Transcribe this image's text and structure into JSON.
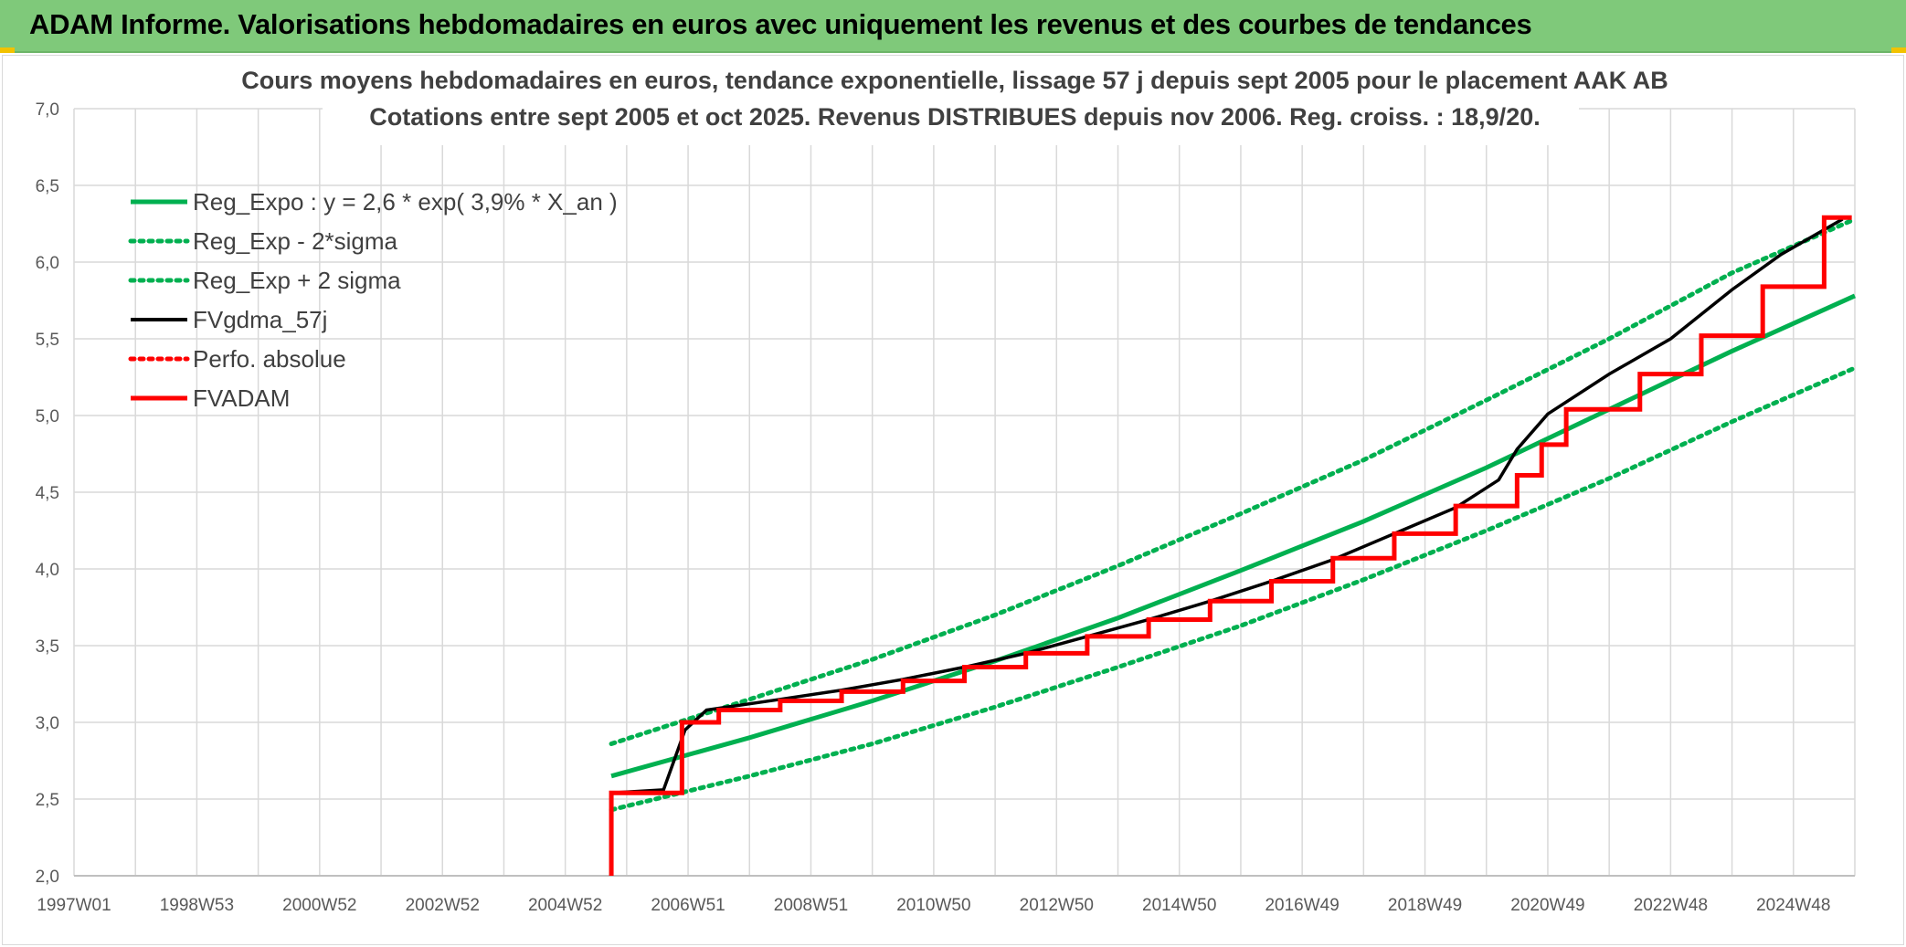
{
  "header": {
    "title": "ADAM Informe. Valorisations hebdomadaires en euros avec uniquement les revenus et des courbes de tendances"
  },
  "colors": {
    "header_bg": "#7fc97a",
    "green": "#00b050",
    "black": "#000000",
    "red": "#ff0000"
  },
  "chart_data": {
    "type": "line",
    "title_lines": [
      "Cours moyens hebdomadaires en euros, tendance exponentielle, lissage 57 j depuis sept 2005 pour le placement AAK AB",
      "Cotations entre sept 2005 et oct 2025. Revenus DISTRIBUES depuis nov 2006. Reg. croiss. : 18,9/20."
    ],
    "x_tick_labels": [
      "1997W01",
      "1998W53",
      "2000W52",
      "2002W52",
      "2004W52",
      "2006W51",
      "2008W51",
      "2010W50",
      "2012W50",
      "2014W50",
      "2016W49",
      "2018W49",
      "2020W49",
      "2022W48",
      "2024W48"
    ],
    "xlim": [
      1997.0,
      2026.0
    ],
    "ylim": [
      2.0,
      7.0
    ],
    "y_tick_labels": [
      "2,0",
      "2,5",
      "3,0",
      "3,5",
      "4,0",
      "4,5",
      "5,0",
      "5,5",
      "6,0",
      "6,5",
      "7,0"
    ],
    "grid": true,
    "legend_position": "top-left",
    "series": [
      {
        "name": "Reg_Expo : y = 2,6 * exp( 3,9% *  X_an )",
        "color": "#00b050",
        "style": "solid",
        "x": [
          2005.75,
          2008,
          2010,
          2012,
          2014,
          2016,
          2018,
          2020,
          2022,
          2024,
          2026
        ],
        "y": [
          2.65,
          2.9,
          3.14,
          3.4,
          3.68,
          3.99,
          4.31,
          4.66,
          5.04,
          5.42,
          5.78
        ]
      },
      {
        "name": "Reg_Exp - 2*sigma",
        "color": "#00b050",
        "style": "dotted",
        "x": [
          2005.75,
          2008,
          2010,
          2012,
          2014,
          2016,
          2018,
          2020,
          2022,
          2024,
          2026
        ],
        "y": [
          2.43,
          2.65,
          2.86,
          3.1,
          3.36,
          3.63,
          3.93,
          4.25,
          4.59,
          4.96,
          5.31
        ]
      },
      {
        "name": "Reg_Exp + 2 sigma",
        "color": "#00b050",
        "style": "dotted",
        "x": [
          2005.75,
          2008,
          2010,
          2012,
          2014,
          2016,
          2018,
          2020,
          2022,
          2024,
          2026
        ],
        "y": [
          2.86,
          3.15,
          3.41,
          3.7,
          4.02,
          4.36,
          4.71,
          5.1,
          5.5,
          5.93,
          6.28
        ]
      },
      {
        "name": "FVgdma_57j",
        "color": "#000000",
        "style": "solid",
        "x": [
          2005.75,
          2006.6,
          2006.95,
          2007.3,
          2008.5,
          2009.5,
          2010.5,
          2011.5,
          2012.5,
          2013.5,
          2014.5,
          2015.5,
          2016.5,
          2017.5,
          2018.5,
          2019.5,
          2020.2,
          2020.5,
          2021.0,
          2022.0,
          2023.0,
          2024.0,
          2024.8,
          2025.8
        ],
        "y": [
          2.54,
          2.56,
          2.95,
          3.08,
          3.15,
          3.21,
          3.28,
          3.36,
          3.45,
          3.56,
          3.67,
          3.79,
          3.92,
          4.06,
          4.23,
          4.4,
          4.58,
          4.78,
          5.01,
          5.27,
          5.5,
          5.82,
          6.05,
          6.28
        ]
      },
      {
        "name": "Perfo. absolue",
        "color": "#ff0000",
        "style": "dotted",
        "x": [],
        "y": []
      },
      {
        "name": "FVADAM",
        "color": "#ff0000",
        "style": "step",
        "x": [
          2005.75,
          2005.75,
          2006.9,
          2007.5,
          2008.5,
          2009.5,
          2010.5,
          2011.5,
          2012.5,
          2013.5,
          2014.5,
          2015.5,
          2016.5,
          2017.5,
          2018.5,
          2019.5,
          2020.5,
          2020.9,
          2021.3,
          2022.5,
          2023.5,
          2024.5,
          2025.5,
          2025.95
        ],
        "y": [
          2.0,
          2.54,
          3.0,
          3.08,
          3.14,
          3.2,
          3.27,
          3.36,
          3.45,
          3.56,
          3.67,
          3.79,
          3.92,
          4.07,
          4.23,
          4.41,
          4.61,
          4.81,
          5.04,
          5.27,
          5.52,
          5.84,
          6.29,
          6.29
        ]
      }
    ]
  }
}
